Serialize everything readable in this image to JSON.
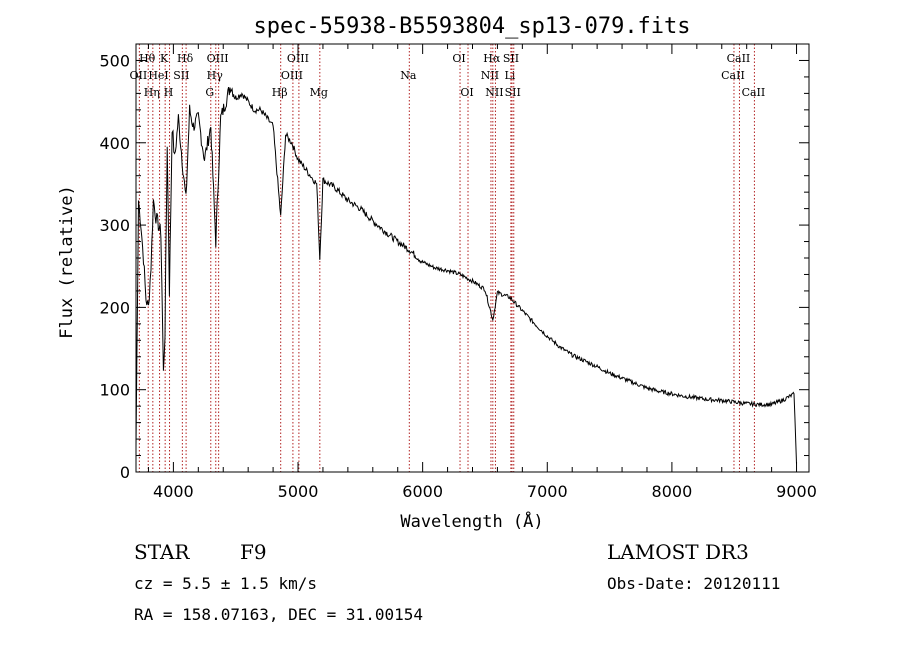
{
  "chart_data": {
    "type": "line",
    "title": "spec-55938-B5593804_sp13-079.fits",
    "xlabel": "Wavelength (Å)",
    "ylabel": "Flux (relative)",
    "xlim": [
      3700,
      9100
    ],
    "ylim": [
      0,
      520
    ],
    "xticks": [
      4000,
      5000,
      6000,
      7000,
      8000,
      9000
    ],
    "yticks": [
      0,
      100,
      200,
      300,
      400,
      500
    ],
    "grid": false,
    "series": [
      {
        "name": "spectrum",
        "x": [
          3700,
          3720,
          3740,
          3760,
          3780,
          3800,
          3820,
          3840,
          3860,
          3880,
          3900,
          3920,
          3933,
          3950,
          3968,
          3990,
          4010,
          4040,
          4070,
          4101,
          4130,
          4160,
          4200,
          4250,
          4300,
          4340,
          4380,
          4420,
          4460,
          4500,
          4550,
          4600,
          4650,
          4700,
          4750,
          4800,
          4861,
          4900,
          4950,
          5000,
          5050,
          5100,
          5150,
          5175,
          5200,
          5300,
          5400,
          5500,
          5600,
          5700,
          5800,
          5893,
          5950,
          6000,
          6100,
          6200,
          6300,
          6400,
          6500,
          6563,
          6600,
          6700,
          6800,
          6900,
          7000,
          7100,
          7200,
          7300,
          7400,
          7500,
          7600,
          7700,
          7800,
          7900,
          8000,
          8100,
          8200,
          8300,
          8400,
          8500,
          8600,
          8700,
          8800,
          8900,
          8980,
          9000
        ],
        "values": [
          30,
          330,
          300,
          260,
          210,
          200,
          250,
          330,
          310,
          300,
          290,
          120,
          170,
          400,
          220,
          420,
          380,
          430,
          380,
          330,
          440,
          420,
          430,
          380,
          420,
          280,
          430,
          450,
          470,
          455,
          460,
          450,
          440,
          440,
          430,
          420,
          310,
          410,
          400,
          380,
          370,
          360,
          350,
          260,
          355,
          345,
          330,
          320,
          305,
          292,
          280,
          270,
          262,
          255,
          248,
          245,
          240,
          232,
          222,
          185,
          218,
          212,
          196,
          180,
          165,
          152,
          142,
          135,
          128,
          120,
          114,
          108,
          102,
          98,
          95,
          92,
          90,
          88,
          87,
          85,
          83,
          82,
          82,
          88,
          95,
          10
        ]
      }
    ],
    "lines": [
      {
        "wavelength": 3727,
        "label": "OII",
        "row": 2
      },
      {
        "wavelength": 3798,
        "label": "Hθ",
        "row": 1
      },
      {
        "wavelength": 3835,
        "label": "Hη",
        "row": 3
      },
      {
        "wavelength": 3889,
        "label": "HeI",
        "row": 2
      },
      {
        "wavelength": 3934,
        "label": "K",
        "row": 1
      },
      {
        "wavelength": 3969,
        "label": "H",
        "row": 3
      },
      {
        "wavelength": 4072,
        "label": "SII",
        "row": 2
      },
      {
        "wavelength": 4102,
        "label": "Hδ",
        "row": 1
      },
      {
        "wavelength": 4300,
        "label": "G",
        "row": 3
      },
      {
        "wavelength": 4340,
        "label": "Hγ",
        "row": 2
      },
      {
        "wavelength": 4363,
        "label": "OIII",
        "row": 1
      },
      {
        "wavelength": 4861,
        "label": "Hβ",
        "row": 3
      },
      {
        "wavelength": 4959,
        "label": "OIII",
        "row": 2
      },
      {
        "wavelength": 5007,
        "label": "OIII",
        "row": 1
      },
      {
        "wavelength": 5175,
        "label": "Mg",
        "row": 3
      },
      {
        "wavelength": 5893,
        "label": "Na",
        "row": 2
      },
      {
        "wavelength": 6300,
        "label": "OI",
        "row": 1
      },
      {
        "wavelength": 6364,
        "label": "OI",
        "row": 3
      },
      {
        "wavelength": 6548,
        "label": "NII",
        "row": 2
      },
      {
        "wavelength": 6563,
        "label": "Hα",
        "row": 1
      },
      {
        "wavelength": 6584,
        "label": "NII",
        "row": 3
      },
      {
        "wavelength": 6708,
        "label": "Li",
        "row": 2
      },
      {
        "wavelength": 6717,
        "label": "SII",
        "row": 1
      },
      {
        "wavelength": 6731,
        "label": "SII",
        "row": 3
      },
      {
        "wavelength": 8498,
        "label": "CaII",
        "row": 2
      },
      {
        "wavelength": 8542,
        "label": "CaII",
        "row": 1
      },
      {
        "wavelength": 8662,
        "label": "CaII",
        "row": 3
      }
    ]
  },
  "info": {
    "class": "STAR",
    "subclass": "F9",
    "survey": "LAMOST DR3",
    "cz": "cz = 5.5 ± 1.5 km/s",
    "obs_date": "Obs-Date: 20120111",
    "coords": "RA = 158.07163, DEC =  31.00154"
  },
  "colors": {
    "line_marker": "#b22222",
    "spectrum": "#000000",
    "axes": "#000000"
  }
}
